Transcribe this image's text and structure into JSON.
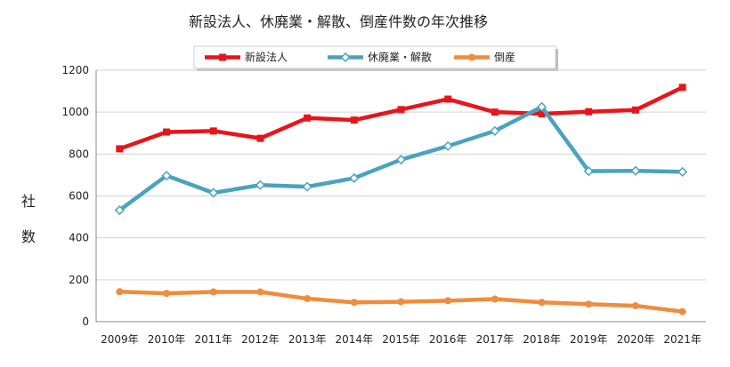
{
  "chart_data": {
    "type": "line",
    "title": "新設法人、休廃業・解散、倒産件数の年次推移",
    "ylabel": "社数",
    "xlabel": "",
    "categories": [
      "2009年",
      "2010年",
      "2011年",
      "2012年",
      "2013年",
      "2014年",
      "2015年",
      "2016年",
      "2017年",
      "2018年",
      "2019年",
      "2020年",
      "2021年"
    ],
    "ylim": [
      0,
      1200
    ],
    "yticks": [
      "0",
      "200",
      "400",
      "600",
      "800",
      "1000",
      "1200"
    ],
    "grid": true,
    "legend_position": "top",
    "series": [
      {
        "name": "新設法人",
        "color": "#e8141b",
        "marker": "square",
        "values": [
          825,
          905,
          910,
          875,
          972,
          962,
          1012,
          1062,
          1000,
          992,
          1002,
          1010,
          1118
        ]
      },
      {
        "name": "休廃業・解散",
        "color": "#4aa3be",
        "marker": "diamond",
        "values": [
          532,
          697,
          615,
          652,
          644,
          685,
          773,
          838,
          910,
          1025,
          718,
          720,
          715
        ]
      },
      {
        "name": "倒産",
        "color": "#f08c3c",
        "marker": "circle",
        "values": [
          143,
          135,
          142,
          142,
          110,
          92,
          95,
          100,
          108,
          92,
          84,
          76,
          48
        ]
      }
    ]
  }
}
